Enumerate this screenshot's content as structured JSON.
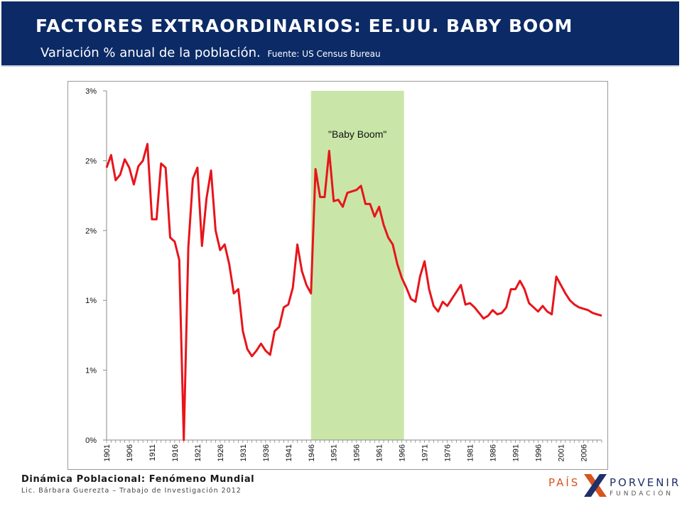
{
  "header": {
    "title": "FACTORES EXTRAORDINARIOS: EE.UU. BABY BOOM",
    "subtitle": "Variación % anual de la población.",
    "source": "Fuente: US Census Bureau"
  },
  "footer": {
    "title": "Dinámica Poblacional: Fenómeno Mundial",
    "subtitle": "Lic. Bárbara Guerezta – Trabajo de Investigación 2012"
  },
  "logo": {
    "pais": "PAÍS",
    "porvenir": "PORVENIR",
    "fundacion": "FUNDACIÓN"
  },
  "colors": {
    "header_band": "#0b2a66",
    "line": "#e8141b",
    "highlight": "#c9e6a8"
  },
  "chart_data": {
    "type": "line",
    "xlabel": "",
    "ylabel": "",
    "x_tick_labels": [
      "1901",
      "1906",
      "1911",
      "1916",
      "1921",
      "1926",
      "1931",
      "1936",
      "1941",
      "1946",
      "1951",
      "1956",
      "1961",
      "1966",
      "1971",
      "1976",
      "1981",
      "1986",
      "1991",
      "1996",
      "2001",
      "2006"
    ],
    "y_tick_values": [
      0,
      0.5,
      1.0,
      1.5,
      2.0,
      2.5
    ],
    "y_tick_labels": [
      "0%",
      "1%",
      "1%",
      "2%",
      "2%",
      "3%"
    ],
    "ylim": [
      0,
      2.5
    ],
    "grid": false,
    "legend": "none",
    "annotation": {
      "label": "\"Baby Boom\"",
      "x_start": 1946,
      "x_end": 1966
    },
    "series": [
      {
        "x": [
          1901,
          1902,
          1903,
          1904,
          1905,
          1906,
          1907,
          1908,
          1909,
          1910,
          1911,
          1912,
          1913,
          1914,
          1915,
          1916,
          1917,
          1918,
          1919,
          1920,
          1921,
          1922,
          1923,
          1924,
          1925,
          1926,
          1927,
          1928,
          1929,
          1930,
          1931,
          1932,
          1933,
          1934,
          1935,
          1936,
          1937,
          1938,
          1939,
          1940,
          1941,
          1942,
          1943,
          1944,
          1945,
          1946,
          1947,
          1948,
          1949,
          1950,
          1951,
          1952,
          1953,
          1954,
          1955,
          1956,
          1957,
          1958,
          1959,
          1960,
          1961,
          1962,
          1963,
          1964,
          1965,
          1966,
          1967,
          1968,
          1969,
          1970,
          1971,
          1972,
          1973,
          1974,
          1975,
          1976,
          1977,
          1978,
          1979,
          1980,
          1981,
          1982,
          1983,
          1984,
          1985,
          1986,
          1987,
          1988,
          1989,
          1990,
          1991,
          1992,
          1993,
          1994,
          1995,
          1996,
          1997,
          1998,
          1999,
          2000,
          2001,
          2002,
          2003,
          2004,
          2005,
          2006,
          2007,
          2008,
          2009,
          2010
        ],
        "values": [
          1.95,
          2.04,
          1.86,
          1.9,
          2.01,
          1.95,
          1.83,
          1.96,
          2.0,
          2.12,
          1.58,
          1.58,
          1.98,
          1.95,
          1.45,
          1.42,
          1.29,
          0.0,
          1.38,
          1.87,
          1.95,
          1.39,
          1.73,
          1.93,
          1.5,
          1.36,
          1.4,
          1.26,
          1.05,
          1.08,
          0.78,
          0.65,
          0.6,
          0.64,
          0.69,
          0.64,
          0.61,
          0.78,
          0.81,
          0.95,
          0.97,
          1.09,
          1.4,
          1.21,
          1.11,
          1.05,
          1.94,
          1.74,
          1.74,
          2.07,
          1.71,
          1.72,
          1.67,
          1.77,
          1.78,
          1.79,
          1.82,
          1.69,
          1.69,
          1.6,
          1.67,
          1.54,
          1.45,
          1.4,
          1.26,
          1.16,
          1.09,
          1.01,
          0.99,
          1.17,
          1.28,
          1.08,
          0.96,
          0.92,
          0.99,
          0.96,
          1.01,
          1.06,
          1.11,
          0.97,
          0.98,
          0.95,
          0.91,
          0.87,
          0.89,
          0.93,
          0.9,
          0.91,
          0.95,
          1.08,
          1.08,
          1.14,
          1.08,
          0.98,
          0.95,
          0.92,
          0.96,
          0.92,
          0.9,
          1.17,
          1.11,
          1.05,
          1.0,
          0.97,
          0.95,
          0.94,
          0.93,
          0.91,
          0.9,
          0.89
        ]
      }
    ]
  }
}
